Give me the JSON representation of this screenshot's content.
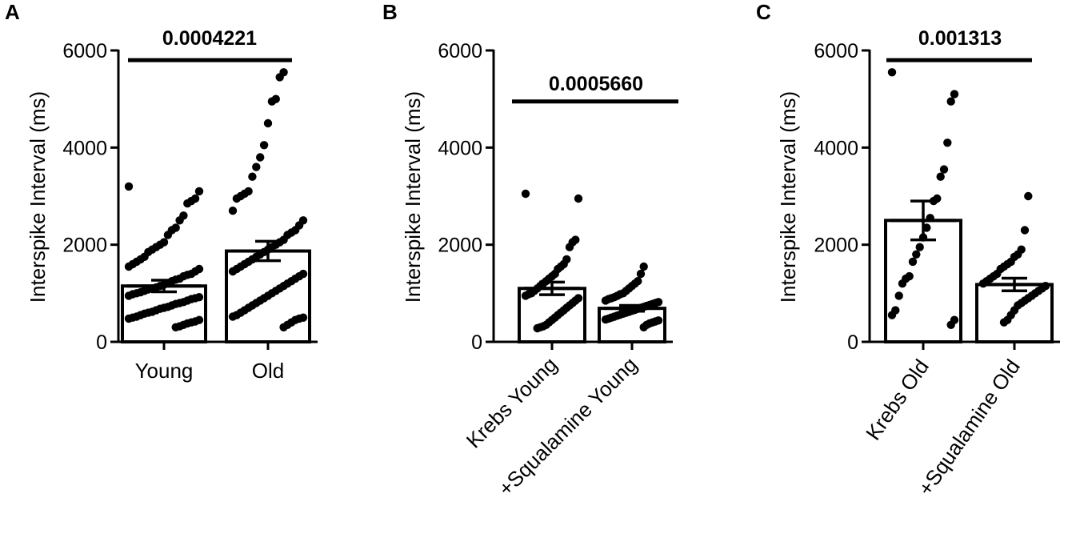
{
  "chart_data": [
    {
      "panel": "A",
      "type": "bar",
      "ylabel": "Interspike Interval (ms)",
      "ylim": [
        0,
        6000
      ],
      "yticks": [
        0,
        2000,
        4000,
        6000
      ],
      "categories": [
        "Young",
        "Old"
      ],
      "values": [
        1150,
        1870
      ],
      "sem": [
        120,
        200
      ],
      "significance": "0.0004221",
      "significance_y": 5800,
      "points": [
        [
          3200,
          3100,
          2950,
          2900,
          2850,
          2600,
          2500,
          2350,
          2300,
          2200,
          2050,
          2000,
          1950,
          1900,
          1850,
          1750,
          1700,
          1650,
          1600,
          1550,
          1500,
          1450,
          1400,
          1380,
          1350,
          1300,
          1280,
          1250,
          1200,
          1180,
          1150,
          1120,
          1100,
          1080,
          1050,
          1020,
          1000,
          980,
          950,
          920,
          900,
          880,
          850,
          820,
          800,
          780,
          750,
          720,
          700,
          680,
          650,
          620,
          600,
          580,
          550,
          520,
          500,
          480,
          450,
          420,
          400,
          380,
          350,
          320,
          300
        ],
        [
          5550,
          5450,
          5000,
          4950,
          4500,
          4050,
          3800,
          3600,
          3400,
          3100,
          3050,
          3000,
          2950,
          2700,
          2500,
          2400,
          2300,
          2250,
          2200,
          2100,
          2050,
          2000,
          1950,
          1900,
          1850,
          1800,
          1750,
          1700,
          1650,
          1600,
          1550,
          1500,
          1450,
          1400,
          1350,
          1300,
          1250,
          1200,
          1150,
          1100,
          1050,
          1000,
          950,
          900,
          850,
          800,
          750,
          700,
          650,
          600,
          550,
          520,
          500,
          480,
          450,
          400,
          350,
          300
        ]
      ]
    },
    {
      "panel": "B",
      "type": "bar",
      "ylabel": "Interspike Interval (ms)",
      "ylim": [
        0,
        6000
      ],
      "yticks": [
        0,
        2000,
        4000,
        6000
      ],
      "categories": [
        "Krebs Young",
        "+Squalamine Young"
      ],
      "values": [
        1100,
        690
      ],
      "sem": [
        130,
        60
      ],
      "significance": "0.0005660",
      "significance_y": 4950,
      "points": [
        [
          3050,
          2950,
          2100,
          2050,
          1950,
          1700,
          1600,
          1550,
          1500,
          1400,
          1350,
          1300,
          1250,
          1200,
          1150,
          1100,
          1050,
          1000,
          980,
          950,
          900,
          850,
          800,
          750,
          700,
          650,
          600,
          550,
          500,
          450,
          400,
          350,
          320,
          300,
          280
        ],
        [
          1550,
          1400,
          1250,
          1200,
          1150,
          1100,
          1050,
          1000,
          980,
          950,
          920,
          900,
          880,
          850,
          820,
          800,
          780,
          760,
          740,
          720,
          700,
          680,
          660,
          640,
          620,
          600,
          580,
          560,
          540,
          520,
          500,
          480,
          460,
          440,
          420,
          400,
          380,
          350,
          300
        ]
      ]
    },
    {
      "panel": "C",
      "type": "bar",
      "ylabel": "Interspike Interval (ms)",
      "ylim": [
        0,
        6000
      ],
      "yticks": [
        0,
        2000,
        4000,
        6000
      ],
      "categories": [
        "Krebs Old",
        "+Squalamine Old"
      ],
      "values": [
        2500,
        1180
      ],
      "sem": [
        400,
        130
      ],
      "significance": "0.001313",
      "significance_y": 5800,
      "points": [
        [
          5550,
          5100,
          4950,
          4100,
          3550,
          3400,
          2950,
          2900,
          2550,
          2350,
          2150,
          1950,
          1800,
          1650,
          1350,
          1300,
          1200,
          950,
          650,
          550,
          450,
          350
        ],
        [
          3000,
          2300,
          1900,
          1800,
          1750,
          1650,
          1600,
          1550,
          1500,
          1400,
          1350,
          1300,
          1250,
          1200,
          1150,
          1100,
          1050,
          1000,
          950,
          900,
          850,
          800,
          750,
          650,
          550,
          450,
          400
        ]
      ]
    }
  ],
  "panels": [
    {
      "letter": "A"
    },
    {
      "letter": "B"
    },
    {
      "letter": "C"
    }
  ]
}
